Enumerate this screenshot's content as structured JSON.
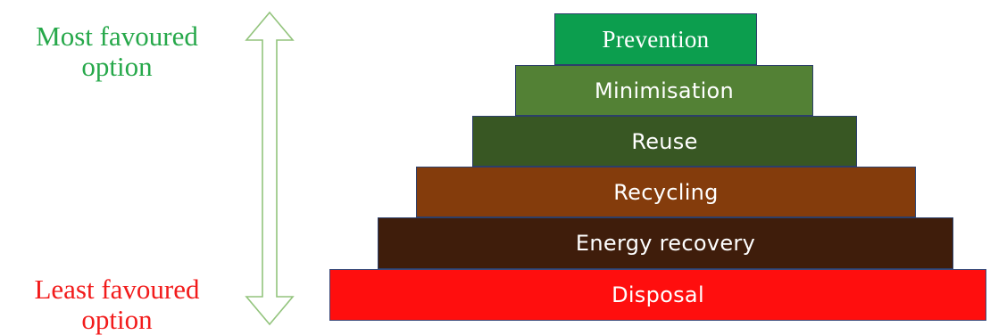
{
  "scale": {
    "top_label_line1": "Most favoured",
    "top_label_line2": "option",
    "top_color": "#26a84a",
    "bottom_label_line1": "Least favoured",
    "bottom_label_line2": "option",
    "bottom_color": "#f21b1b",
    "arrow_color": "#93c47d",
    "arrow_icon": "double-headed-vertical-arrow"
  },
  "hierarchy": {
    "tiers": [
      {
        "label": "Prevention",
        "color": "#0c9e4e"
      },
      {
        "label": "Minimisation",
        "color": "#538135"
      },
      {
        "label": "Reuse",
        "color": "#385723"
      },
      {
        "label": "Recycling",
        "color": "#843c0c"
      },
      {
        "label": "Energy recovery",
        "color": "#3f1d0b"
      },
      {
        "label": "Disposal",
        "color": "#ff0e0e"
      }
    ]
  }
}
